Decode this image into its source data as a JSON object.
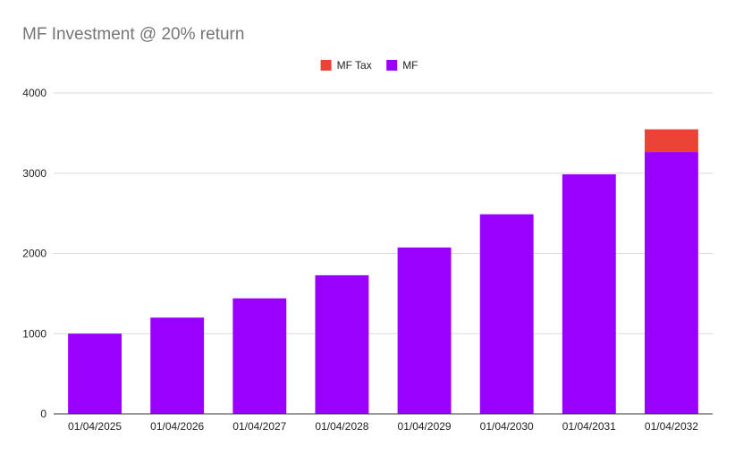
{
  "chart_data": {
    "type": "bar",
    "stacked": true,
    "title": "MF Investment @ 20% return",
    "xlabel": "",
    "ylabel": "",
    "categories": [
      "01/04/2025",
      "01/04/2026",
      "01/04/2027",
      "01/04/2028",
      "01/04/2029",
      "01/04/2030",
      "01/04/2031",
      "01/04/2032"
    ],
    "series": [
      {
        "name": "MF",
        "color": "#9900ff",
        "values": [
          1000,
          1200,
          1440,
          1728,
          2074,
          2488,
          2986,
          3264
        ]
      },
      {
        "name": "MF Tax",
        "color": "#ea4335",
        "values": [
          0,
          0,
          0,
          0,
          0,
          0,
          0,
          283
        ]
      }
    ],
    "legend_order": [
      "MF Tax",
      "MF"
    ],
    "legend_position": "top",
    "ylim": [
      0,
      4000
    ],
    "yticks": [
      0,
      1000,
      2000,
      3000,
      4000
    ],
    "grid": true
  }
}
